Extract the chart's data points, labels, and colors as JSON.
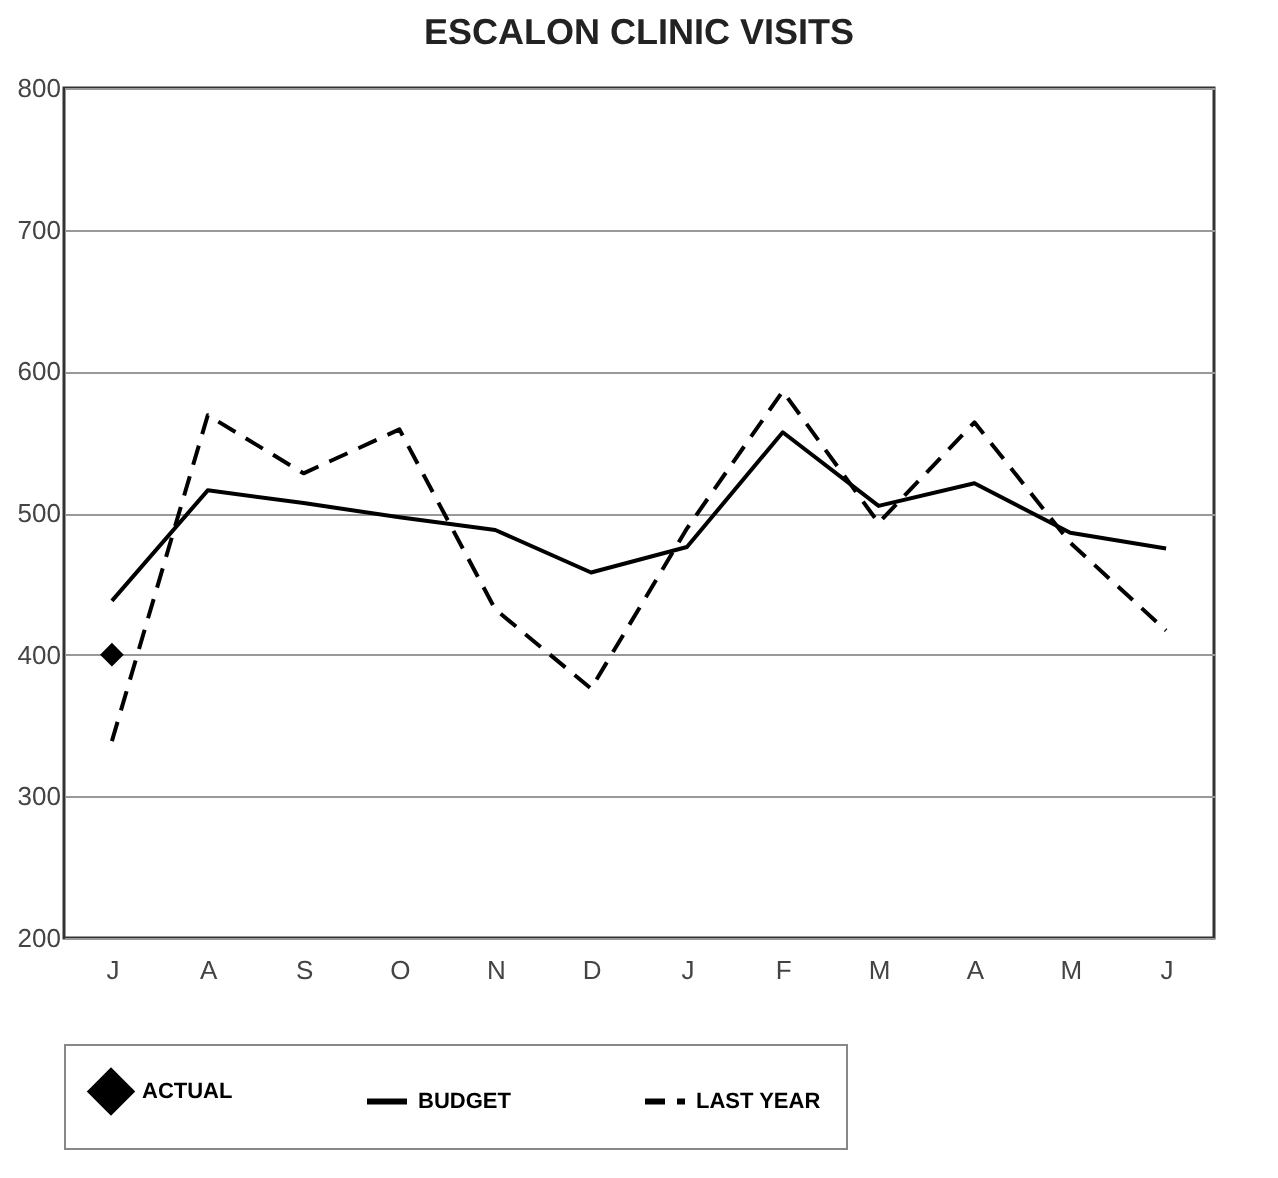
{
  "chart_data": {
    "type": "line",
    "title": "ESCALON CLINIC VISITS",
    "categories": [
      "J",
      "A",
      "S",
      "O",
      "N",
      "D",
      "J",
      "F",
      "M",
      "A",
      "M",
      "J"
    ],
    "series": [
      {
        "name": "ACTUAL",
        "color": "#000000",
        "marker": "diamond",
        "line_style": "solid",
        "values": [
          400,
          null,
          null,
          null,
          null,
          null,
          null,
          null,
          null,
          null,
          null,
          null
        ]
      },
      {
        "name": "BUDGET",
        "color": "#000000",
        "marker": "none",
        "line_style": "solid",
        "values": [
          438,
          516,
          507,
          497,
          488,
          458,
          476,
          557,
          505,
          521,
          486,
          475
        ]
      },
      {
        "name": "LAST YEAR",
        "color": "#000000",
        "marker": "none",
        "line_style": "dashed",
        "values": [
          339,
          569,
          528,
          559,
          432,
          376,
          489,
          586,
          493,
          564,
          479,
          417
        ]
      }
    ],
    "ylim": [
      200,
      800
    ],
    "yticks": [
      200,
      300,
      400,
      500,
      600,
      700,
      800
    ],
    "grid": "y",
    "legend": "bottom"
  }
}
